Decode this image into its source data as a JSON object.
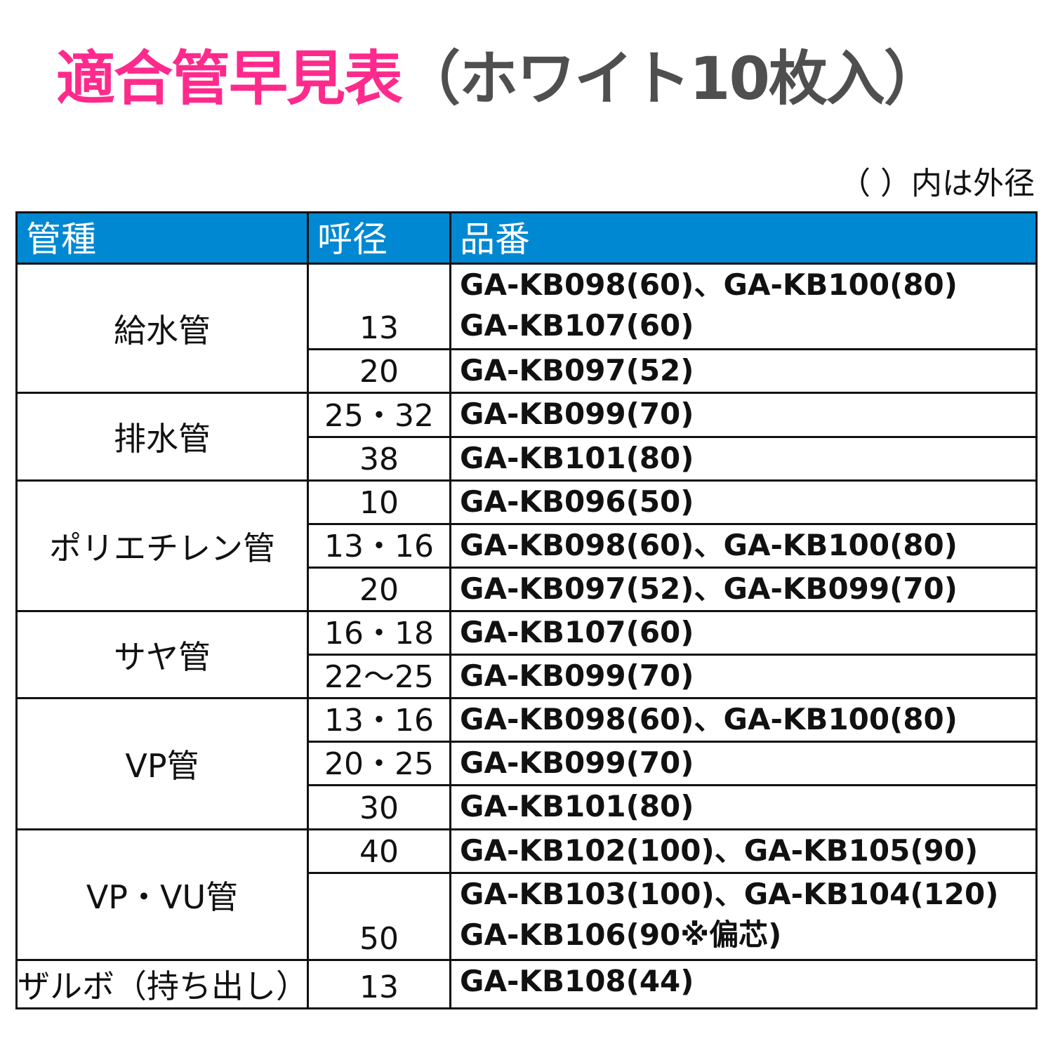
{
  "title": {
    "main": "適合管早見表",
    "sub": "（ホワイト10枚入）"
  },
  "colors": {
    "title_accent": "#ff2a8c",
    "title_sub": "#4f4f4f",
    "header_bg": "#0088d2"
  },
  "note": "（ ）内は外径",
  "table": {
    "headers": [
      "管種",
      "呼径",
      "品番"
    ],
    "groups": [
      {
        "type": "給水管",
        "rows": [
          {
            "dia": "13",
            "parts": [
              "GA-KB098(60)、GA-KB100(80)",
              "GA-KB107(60)"
            ]
          },
          {
            "dia": "20",
            "parts": [
              "GA-KB097(52)"
            ]
          }
        ]
      },
      {
        "type": "排水管",
        "rows": [
          {
            "dia": "25・32",
            "parts": [
              "GA-KB099(70)"
            ]
          },
          {
            "dia": "38",
            "parts": [
              "GA-KB101(80)"
            ]
          }
        ]
      },
      {
        "type": "ポリエチレン管",
        "rows": [
          {
            "dia": "10",
            "parts": [
              "GA-KB096(50)"
            ]
          },
          {
            "dia": "13・16",
            "parts": [
              "GA-KB098(60)、GA-KB100(80)"
            ]
          },
          {
            "dia": "20",
            "parts": [
              "GA-KB097(52)、GA-KB099(70)"
            ]
          }
        ]
      },
      {
        "type": "サヤ管",
        "rows": [
          {
            "dia": "16・18",
            "parts": [
              "GA-KB107(60)"
            ]
          },
          {
            "dia": "22～25",
            "parts": [
              "GA-KB099(70)"
            ]
          }
        ]
      },
      {
        "type": "VP管",
        "rows": [
          {
            "dia": "13・16",
            "parts": [
              "GA-KB098(60)、GA-KB100(80)"
            ]
          },
          {
            "dia": "20・25",
            "parts": [
              "GA-KB099(70)"
            ]
          },
          {
            "dia": "30",
            "parts": [
              "GA-KB101(80)"
            ]
          }
        ]
      },
      {
        "type": "VP・VU管",
        "rows": [
          {
            "dia": "40",
            "parts": [
              "GA-KB102(100)、GA-KB105(90)"
            ]
          },
          {
            "dia": "50",
            "parts": [
              "GA-KB103(100)、GA-KB104(120)",
              "GA-KB106(90※偏芯)"
            ]
          }
        ]
      },
      {
        "type": "ザルボ（持ち出し）",
        "rows": [
          {
            "dia": "13",
            "parts": [
              "GA-KB108(44)"
            ]
          }
        ]
      }
    ]
  }
}
